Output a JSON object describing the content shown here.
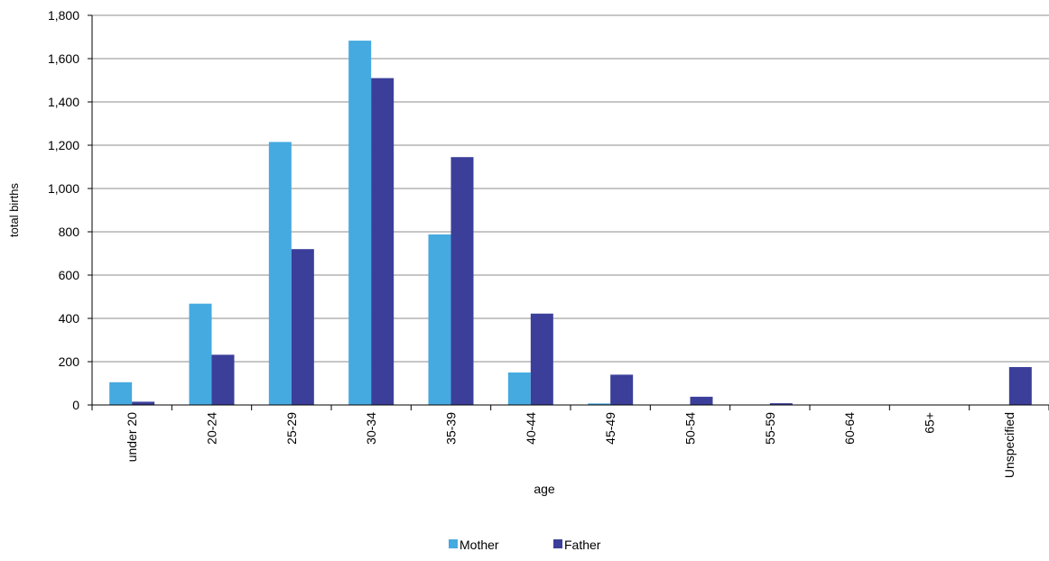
{
  "chart_data": {
    "type": "bar",
    "title": "",
    "xlabel": "age",
    "ylabel": "total births",
    "categories": [
      "under 20",
      "20-24",
      "25-29",
      "30-34",
      "35-39",
      "40-44",
      "45-49",
      "50-54",
      "55-59",
      "60-64",
      "65+",
      "Unspecified"
    ],
    "series": [
      {
        "name": "Mother",
        "color": "#45AAE0",
        "values": [
          105,
          468,
          1215,
          1683,
          788,
          150,
          7,
          0,
          0,
          0,
          0,
          0
        ]
      },
      {
        "name": "Father",
        "color": "#3B3F9A",
        "values": [
          15,
          232,
          720,
          1510,
          1145,
          422,
          140,
          38,
          8,
          1,
          0,
          175
        ]
      }
    ],
    "ylim": [
      0,
      1800
    ],
    "yticks": [
      0,
      200,
      400,
      600,
      800,
      1000,
      1200,
      1400,
      1600,
      1800
    ],
    "ytick_labels": [
      "0",
      "200",
      "400",
      "600",
      "800",
      "1,000",
      "1,200",
      "1,400",
      "1,600",
      "1,800"
    ],
    "grid": "horizontal",
    "legend_position": "bottom"
  }
}
